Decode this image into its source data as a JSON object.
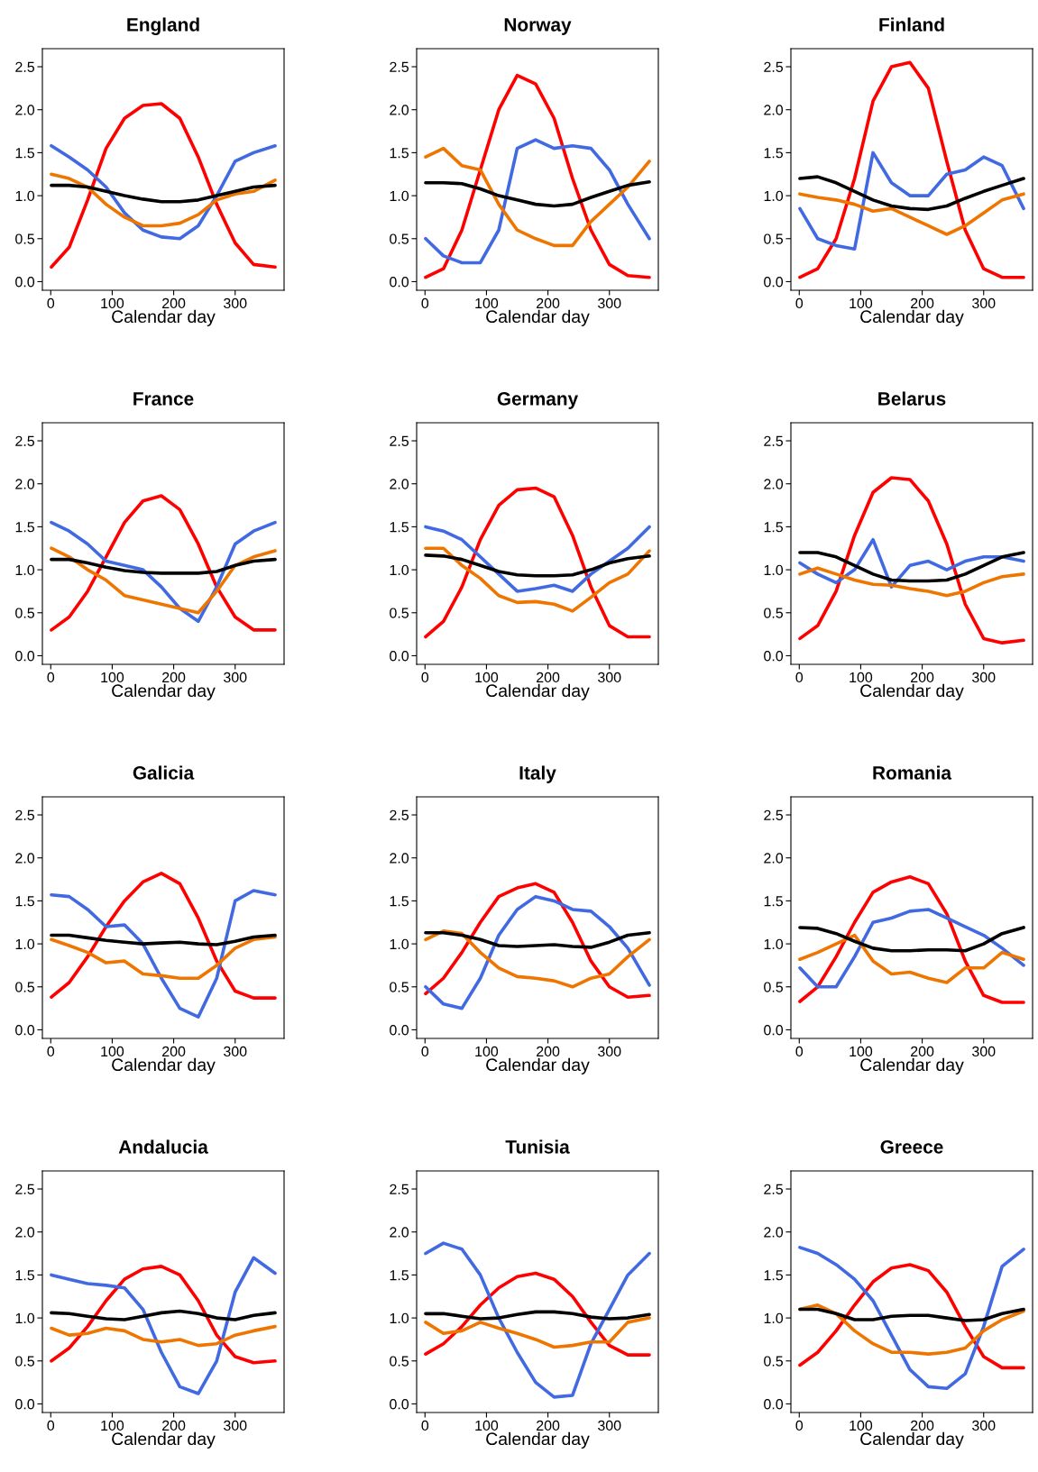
{
  "chart_data": [
    {
      "type": "line",
      "title": "England",
      "xlabel": "Calendar day",
      "x": [
        1,
        30,
        60,
        90,
        120,
        150,
        180,
        210,
        240,
        270,
        300,
        330,
        365
      ],
      "xlim": [
        -13.6,
        379.6
      ],
      "xticks": [
        0,
        100,
        200,
        300
      ],
      "ylim": [
        -0.1,
        2.71
      ],
      "yticks": [
        {
          "value": 0,
          "label": "0.0"
        },
        {
          "value": 0.5,
          "label": "0.5"
        },
        {
          "value": 1,
          "label": "1.0"
        },
        {
          "value": 1.5,
          "label": "1.5"
        },
        {
          "value": 2,
          "label": "2.0"
        },
        {
          "value": 2.5,
          "label": "2.5"
        }
      ],
      "series": [
        {
          "color": "#ff0000",
          "values": [
            0.17,
            0.4,
            0.95,
            1.55,
            1.9,
            2.05,
            2.07,
            1.9,
            1.45,
            0.9,
            0.45,
            0.2,
            0.17
          ]
        },
        {
          "color": "#4169e1",
          "values": [
            1.58,
            1.45,
            1.3,
            1.1,
            0.8,
            0.6,
            0.52,
            0.5,
            0.65,
            1.0,
            1.4,
            1.5,
            1.58
          ]
        },
        {
          "color": "#ee7600",
          "values": [
            1.25,
            1.2,
            1.1,
            0.9,
            0.75,
            0.65,
            0.65,
            0.68,
            0.78,
            0.95,
            1.02,
            1.05,
            1.18
          ]
        },
        {
          "color": "#000000",
          "values": [
            1.12,
            1.12,
            1.1,
            1.05,
            1.0,
            0.96,
            0.93,
            0.93,
            0.95,
            1.0,
            1.05,
            1.1,
            1.12
          ]
        }
      ]
    },
    {
      "type": "line",
      "title": "Norway",
      "xlabel": "Calendar day",
      "x": [
        1,
        30,
        60,
        90,
        120,
        150,
        180,
        210,
        240,
        270,
        300,
        330,
        365
      ],
      "xlim": [
        -13.6,
        379.6
      ],
      "xticks": [
        0,
        100,
        200,
        300
      ],
      "ylim": [
        -0.1,
        2.71
      ],
      "yticks": [
        {
          "value": 0,
          "label": "0.0"
        },
        {
          "value": 0.5,
          "label": "0.5"
        },
        {
          "value": 1,
          "label": "1.0"
        },
        {
          "value": 1.5,
          "label": "1.5"
        },
        {
          "value": 2,
          "label": "2.0"
        },
        {
          "value": 2.5,
          "label": "2.5"
        }
      ],
      "series": [
        {
          "color": "#ff0000",
          "values": [
            0.05,
            0.15,
            0.6,
            1.3,
            2.0,
            2.4,
            2.3,
            1.9,
            1.2,
            0.6,
            0.2,
            0.07,
            0.05
          ]
        },
        {
          "color": "#4169e1",
          "values": [
            0.5,
            0.3,
            0.22,
            0.22,
            0.6,
            1.55,
            1.65,
            1.55,
            1.58,
            1.55,
            1.3,
            0.9,
            0.5
          ]
        },
        {
          "color": "#ee7600",
          "values": [
            1.45,
            1.55,
            1.35,
            1.3,
            0.9,
            0.6,
            0.5,
            0.42,
            0.42,
            0.7,
            0.9,
            1.1,
            1.4
          ]
        },
        {
          "color": "#000000",
          "values": [
            1.15,
            1.15,
            1.14,
            1.08,
            1.0,
            0.95,
            0.9,
            0.88,
            0.9,
            0.98,
            1.05,
            1.12,
            1.16
          ]
        }
      ]
    },
    {
      "type": "line",
      "title": "Finland",
      "xlabel": "Calendar day",
      "x": [
        1,
        30,
        60,
        90,
        120,
        150,
        180,
        210,
        240,
        270,
        300,
        330,
        365
      ],
      "xlim": [
        -13.6,
        379.6
      ],
      "xticks": [
        0,
        100,
        200,
        300
      ],
      "ylim": [
        -0.1,
        2.71
      ],
      "yticks": [
        {
          "value": 0,
          "label": "0.0"
        },
        {
          "value": 0.5,
          "label": "0.5"
        },
        {
          "value": 1,
          "label": "1.0"
        },
        {
          "value": 1.5,
          "label": "1.5"
        },
        {
          "value": 2,
          "label": "2.0"
        },
        {
          "value": 2.5,
          "label": "2.5"
        }
      ],
      "series": [
        {
          "color": "#ff0000",
          "values": [
            0.05,
            0.15,
            0.5,
            1.2,
            2.1,
            2.5,
            2.55,
            2.25,
            1.4,
            0.6,
            0.15,
            0.05,
            0.05
          ]
        },
        {
          "color": "#4169e1",
          "values": [
            0.85,
            0.5,
            0.42,
            0.38,
            1.5,
            1.15,
            1.0,
            1.0,
            1.25,
            1.3,
            1.45,
            1.35,
            0.85
          ]
        },
        {
          "color": "#ee7600",
          "values": [
            1.02,
            0.98,
            0.95,
            0.9,
            0.82,
            0.85,
            0.75,
            0.65,
            0.55,
            0.65,
            0.8,
            0.95,
            1.02
          ]
        },
        {
          "color": "#000000",
          "values": [
            1.2,
            1.22,
            1.15,
            1.05,
            0.95,
            0.88,
            0.85,
            0.84,
            0.88,
            0.97,
            1.05,
            1.12,
            1.2
          ]
        }
      ]
    },
    {
      "type": "line",
      "title": "France",
      "xlabel": "Calendar day",
      "x": [
        1,
        30,
        60,
        90,
        120,
        150,
        180,
        210,
        240,
        270,
        300,
        330,
        365
      ],
      "xlim": [
        -13.6,
        379.6
      ],
      "xticks": [
        0,
        100,
        200,
        300
      ],
      "ylim": [
        -0.1,
        2.71
      ],
      "yticks": [
        {
          "value": 0,
          "label": "0.0"
        },
        {
          "value": 0.5,
          "label": "0.5"
        },
        {
          "value": 1,
          "label": "1.0"
        },
        {
          "value": 1.5,
          "label": "1.5"
        },
        {
          "value": 2,
          "label": "2.0"
        },
        {
          "value": 2.5,
          "label": "2.5"
        }
      ],
      "series": [
        {
          "color": "#ff0000",
          "values": [
            0.3,
            0.45,
            0.75,
            1.15,
            1.55,
            1.8,
            1.86,
            1.7,
            1.3,
            0.8,
            0.45,
            0.3,
            0.3
          ]
        },
        {
          "color": "#4169e1",
          "values": [
            1.55,
            1.45,
            1.3,
            1.1,
            1.05,
            1.0,
            0.8,
            0.55,
            0.4,
            0.8,
            1.3,
            1.45,
            1.55
          ]
        },
        {
          "color": "#ee7600",
          "values": [
            1.25,
            1.15,
            1.0,
            0.88,
            0.7,
            0.65,
            0.6,
            0.55,
            0.5,
            0.75,
            1.05,
            1.15,
            1.22
          ]
        },
        {
          "color": "#000000",
          "values": [
            1.12,
            1.12,
            1.08,
            1.03,
            0.99,
            0.97,
            0.96,
            0.96,
            0.96,
            0.98,
            1.05,
            1.1,
            1.12
          ]
        }
      ]
    },
    {
      "type": "line",
      "title": "Germany",
      "xlabel": "Calendar day",
      "x": [
        1,
        30,
        60,
        90,
        120,
        150,
        180,
        210,
        240,
        270,
        300,
        330,
        365
      ],
      "xlim": [
        -13.6,
        379.6
      ],
      "xticks": [
        0,
        100,
        200,
        300
      ],
      "ylim": [
        -0.1,
        2.71
      ],
      "yticks": [
        {
          "value": 0,
          "label": "0.0"
        },
        {
          "value": 0.5,
          "label": "0.5"
        },
        {
          "value": 1,
          "label": "1.0"
        },
        {
          "value": 1.5,
          "label": "1.5"
        },
        {
          "value": 2,
          "label": "2.0"
        },
        {
          "value": 2.5,
          "label": "2.5"
        }
      ],
      "series": [
        {
          "color": "#ff0000",
          "values": [
            0.22,
            0.4,
            0.8,
            1.35,
            1.75,
            1.93,
            1.95,
            1.85,
            1.4,
            0.8,
            0.35,
            0.22,
            0.22
          ]
        },
        {
          "color": "#4169e1",
          "values": [
            1.5,
            1.45,
            1.35,
            1.15,
            0.95,
            0.75,
            0.78,
            0.82,
            0.75,
            0.95,
            1.1,
            1.25,
            1.5
          ]
        },
        {
          "color": "#ee7600",
          "values": [
            1.25,
            1.25,
            1.05,
            0.9,
            0.7,
            0.62,
            0.63,
            0.6,
            0.52,
            0.68,
            0.85,
            0.95,
            1.22
          ]
        },
        {
          "color": "#000000",
          "values": [
            1.17,
            1.16,
            1.12,
            1.05,
            0.98,
            0.94,
            0.93,
            0.93,
            0.94,
            1.0,
            1.08,
            1.13,
            1.16
          ]
        }
      ]
    },
    {
      "type": "line",
      "title": "Belarus",
      "xlabel": "Calendar day",
      "x": [
        1,
        30,
        60,
        90,
        120,
        150,
        180,
        210,
        240,
        270,
        300,
        330,
        365
      ],
      "xlim": [
        -13.6,
        379.6
      ],
      "xticks": [
        0,
        100,
        200,
        300
      ],
      "ylim": [
        -0.1,
        2.71
      ],
      "yticks": [
        {
          "value": 0,
          "label": "0.0"
        },
        {
          "value": 0.5,
          "label": "0.5"
        },
        {
          "value": 1,
          "label": "1.0"
        },
        {
          "value": 1.5,
          "label": "1.5"
        },
        {
          "value": 2,
          "label": "2.0"
        },
        {
          "value": 2.5,
          "label": "2.5"
        }
      ],
      "series": [
        {
          "color": "#ff0000",
          "values": [
            0.2,
            0.35,
            0.75,
            1.4,
            1.9,
            2.07,
            2.05,
            1.8,
            1.3,
            0.6,
            0.2,
            0.15,
            0.18
          ]
        },
        {
          "color": "#4169e1",
          "values": [
            1.08,
            0.95,
            0.85,
            1.0,
            1.35,
            0.8,
            1.05,
            1.1,
            1.0,
            1.1,
            1.15,
            1.15,
            1.1
          ]
        },
        {
          "color": "#ee7600",
          "values": [
            0.95,
            1.02,
            0.95,
            0.88,
            0.83,
            0.82,
            0.78,
            0.75,
            0.7,
            0.75,
            0.85,
            0.92,
            0.95
          ]
        },
        {
          "color": "#000000",
          "values": [
            1.2,
            1.2,
            1.15,
            1.05,
            0.95,
            0.88,
            0.87,
            0.87,
            0.88,
            0.95,
            1.05,
            1.15,
            1.2
          ]
        }
      ]
    },
    {
      "type": "line",
      "title": "Galicia",
      "xlabel": "Calendar day",
      "x": [
        1,
        30,
        60,
        90,
        120,
        150,
        180,
        210,
        240,
        270,
        300,
        330,
        365
      ],
      "xlim": [
        -13.6,
        379.6
      ],
      "xticks": [
        0,
        100,
        200,
        300
      ],
      "ylim": [
        -0.1,
        2.71
      ],
      "yticks": [
        {
          "value": 0,
          "label": "0.0"
        },
        {
          "value": 0.5,
          "label": "0.5"
        },
        {
          "value": 1,
          "label": "1.0"
        },
        {
          "value": 1.5,
          "label": "1.5"
        },
        {
          "value": 2,
          "label": "2.0"
        },
        {
          "value": 2.5,
          "label": "2.5"
        }
      ],
      "series": [
        {
          "color": "#ff0000",
          "values": [
            0.38,
            0.55,
            0.85,
            1.2,
            1.5,
            1.72,
            1.82,
            1.7,
            1.3,
            0.8,
            0.45,
            0.37,
            0.37
          ]
        },
        {
          "color": "#4169e1",
          "values": [
            1.57,
            1.55,
            1.4,
            1.2,
            1.22,
            1.0,
            0.6,
            0.25,
            0.15,
            0.6,
            1.5,
            1.62,
            1.57
          ]
        },
        {
          "color": "#ee7600",
          "values": [
            1.05,
            0.98,
            0.9,
            0.78,
            0.8,
            0.65,
            0.63,
            0.6,
            0.6,
            0.75,
            0.95,
            1.05,
            1.08
          ]
        },
        {
          "color": "#000000",
          "values": [
            1.1,
            1.1,
            1.07,
            1.04,
            1.02,
            1.0,
            1.01,
            1.02,
            1.0,
            0.99,
            1.03,
            1.08,
            1.1
          ]
        }
      ]
    },
    {
      "type": "line",
      "title": "Italy",
      "xlabel": "Calendar day",
      "x": [
        1,
        30,
        60,
        90,
        120,
        150,
        180,
        210,
        240,
        270,
        300,
        330,
        365
      ],
      "xlim": [
        -13.6,
        379.6
      ],
      "xticks": [
        0,
        100,
        200,
        300
      ],
      "ylim": [
        -0.1,
        2.71
      ],
      "yticks": [
        {
          "value": 0,
          "label": "0.0"
        },
        {
          "value": 0.5,
          "label": "0.5"
        },
        {
          "value": 1,
          "label": "1.0"
        },
        {
          "value": 1.5,
          "label": "1.5"
        },
        {
          "value": 2,
          "label": "2.0"
        },
        {
          "value": 2.5,
          "label": "2.5"
        }
      ],
      "series": [
        {
          "color": "#ff0000",
          "values": [
            0.42,
            0.6,
            0.9,
            1.25,
            1.55,
            1.65,
            1.7,
            1.6,
            1.25,
            0.8,
            0.5,
            0.38,
            0.4
          ]
        },
        {
          "color": "#4169e1",
          "values": [
            0.5,
            0.3,
            0.25,
            0.6,
            1.1,
            1.4,
            1.55,
            1.5,
            1.4,
            1.38,
            1.2,
            0.95,
            0.52
          ]
        },
        {
          "color": "#ee7600",
          "values": [
            1.05,
            1.15,
            1.12,
            0.9,
            0.72,
            0.62,
            0.6,
            0.57,
            0.5,
            0.6,
            0.65,
            0.85,
            1.05
          ]
        },
        {
          "color": "#000000",
          "values": [
            1.13,
            1.13,
            1.1,
            1.05,
            0.98,
            0.97,
            0.98,
            0.99,
            0.97,
            0.96,
            1.02,
            1.1,
            1.13
          ]
        }
      ]
    },
    {
      "type": "line",
      "title": "Romania",
      "xlabel": "Calendar day",
      "x": [
        1,
        30,
        60,
        90,
        120,
        150,
        180,
        210,
        240,
        270,
        300,
        330,
        365
      ],
      "xlim": [
        -13.6,
        379.6
      ],
      "xticks": [
        0,
        100,
        200,
        300
      ],
      "ylim": [
        -0.1,
        2.71
      ],
      "yticks": [
        {
          "value": 0,
          "label": "0.0"
        },
        {
          "value": 0.5,
          "label": "0.5"
        },
        {
          "value": 1,
          "label": "1.0"
        },
        {
          "value": 1.5,
          "label": "1.5"
        },
        {
          "value": 2,
          "label": "2.0"
        },
        {
          "value": 2.5,
          "label": "2.5"
        }
      ],
      "series": [
        {
          "color": "#ff0000",
          "values": [
            0.33,
            0.5,
            0.85,
            1.25,
            1.6,
            1.72,
            1.78,
            1.7,
            1.35,
            0.8,
            0.4,
            0.32,
            0.32
          ]
        },
        {
          "color": "#4169e1",
          "values": [
            0.72,
            0.5,
            0.5,
            0.85,
            1.25,
            1.3,
            1.38,
            1.4,
            1.3,
            1.2,
            1.1,
            0.95,
            0.75
          ]
        },
        {
          "color": "#ee7600",
          "values": [
            0.82,
            0.9,
            1.0,
            1.1,
            0.8,
            0.65,
            0.67,
            0.6,
            0.55,
            0.72,
            0.72,
            0.9,
            0.82
          ]
        },
        {
          "color": "#000000",
          "values": [
            1.19,
            1.18,
            1.12,
            1.03,
            0.95,
            0.92,
            0.92,
            0.93,
            0.93,
            0.92,
            1.0,
            1.12,
            1.19
          ]
        }
      ]
    },
    {
      "type": "line",
      "title": "Andalucia",
      "xlabel": "Calendar day",
      "x": [
        1,
        30,
        60,
        90,
        120,
        150,
        180,
        210,
        240,
        270,
        300,
        330,
        365
      ],
      "xlim": [
        -13.6,
        379.6
      ],
      "xticks": [
        0,
        100,
        200,
        300
      ],
      "ylim": [
        -0.1,
        2.71
      ],
      "yticks": [
        {
          "value": 0,
          "label": "0.0"
        },
        {
          "value": 0.5,
          "label": "0.5"
        },
        {
          "value": 1,
          "label": "1.0"
        },
        {
          "value": 1.5,
          "label": "1.5"
        },
        {
          "value": 2,
          "label": "2.0"
        },
        {
          "value": 2.5,
          "label": "2.5"
        }
      ],
      "series": [
        {
          "color": "#ff0000",
          "values": [
            0.5,
            0.65,
            0.9,
            1.2,
            1.45,
            1.57,
            1.6,
            1.5,
            1.2,
            0.8,
            0.55,
            0.48,
            0.5
          ]
        },
        {
          "color": "#4169e1",
          "values": [
            1.5,
            1.45,
            1.4,
            1.38,
            1.35,
            1.1,
            0.6,
            0.2,
            0.12,
            0.5,
            1.3,
            1.7,
            1.52
          ]
        },
        {
          "color": "#ee7600",
          "values": [
            0.88,
            0.8,
            0.82,
            0.88,
            0.85,
            0.75,
            0.72,
            0.75,
            0.68,
            0.7,
            0.8,
            0.85,
            0.9
          ]
        },
        {
          "color": "#000000",
          "values": [
            1.06,
            1.05,
            1.02,
            0.99,
            0.98,
            1.02,
            1.06,
            1.08,
            1.05,
            1.0,
            0.98,
            1.03,
            1.06
          ]
        }
      ]
    },
    {
      "type": "line",
      "title": "Tunisia",
      "xlabel": "Calendar day",
      "x": [
        1,
        30,
        60,
        90,
        120,
        150,
        180,
        210,
        240,
        270,
        300,
        330,
        365
      ],
      "xlim": [
        -13.6,
        379.6
      ],
      "xticks": [
        0,
        100,
        200,
        300
      ],
      "ylim": [
        -0.1,
        2.71
      ],
      "yticks": [
        {
          "value": 0,
          "label": "0.0"
        },
        {
          "value": 0.5,
          "label": "0.5"
        },
        {
          "value": 1,
          "label": "1.0"
        },
        {
          "value": 1.5,
          "label": "1.5"
        },
        {
          "value": 2,
          "label": "2.0"
        },
        {
          "value": 2.5,
          "label": "2.5"
        }
      ],
      "series": [
        {
          "color": "#ff0000",
          "values": [
            0.58,
            0.7,
            0.9,
            1.15,
            1.35,
            1.48,
            1.52,
            1.45,
            1.25,
            0.95,
            0.68,
            0.57,
            0.57
          ]
        },
        {
          "color": "#4169e1",
          "values": [
            1.75,
            1.87,
            1.8,
            1.5,
            1.0,
            0.6,
            0.25,
            0.08,
            0.1,
            0.7,
            1.1,
            1.5,
            1.75
          ]
        },
        {
          "color": "#ee7600",
          "values": [
            0.95,
            0.82,
            0.85,
            0.95,
            0.88,
            0.82,
            0.75,
            0.66,
            0.68,
            0.72,
            0.72,
            0.95,
            1.0
          ]
        },
        {
          "color": "#000000",
          "values": [
            1.05,
            1.05,
            1.02,
            0.99,
            1.0,
            1.04,
            1.07,
            1.07,
            1.05,
            1.01,
            0.99,
            1.0,
            1.04
          ]
        }
      ]
    },
    {
      "type": "line",
      "title": "Greece",
      "xlabel": "Calendar day",
      "x": [
        1,
        30,
        60,
        90,
        120,
        150,
        180,
        210,
        240,
        270,
        300,
        330,
        365
      ],
      "xlim": [
        -13.6,
        379.6
      ],
      "xticks": [
        0,
        100,
        200,
        300
      ],
      "ylim": [
        -0.1,
        2.71
      ],
      "yticks": [
        {
          "value": 0,
          "label": "0.0"
        },
        {
          "value": 0.5,
          "label": "0.5"
        },
        {
          "value": 1,
          "label": "1.0"
        },
        {
          "value": 1.5,
          "label": "1.5"
        },
        {
          "value": 2,
          "label": "2.0"
        },
        {
          "value": 2.5,
          "label": "2.5"
        }
      ],
      "series": [
        {
          "color": "#ff0000",
          "values": [
            0.45,
            0.6,
            0.85,
            1.15,
            1.42,
            1.58,
            1.62,
            1.55,
            1.3,
            0.9,
            0.55,
            0.42,
            0.42
          ]
        },
        {
          "color": "#4169e1",
          "values": [
            1.82,
            1.75,
            1.62,
            1.45,
            1.2,
            0.8,
            0.4,
            0.2,
            0.18,
            0.35,
            0.9,
            1.6,
            1.8
          ]
        },
        {
          "color": "#ee7600",
          "values": [
            1.1,
            1.15,
            1.05,
            0.85,
            0.7,
            0.6,
            0.6,
            0.58,
            0.6,
            0.65,
            0.85,
            0.98,
            1.08
          ]
        },
        {
          "color": "#000000",
          "values": [
            1.1,
            1.1,
            1.05,
            0.98,
            0.98,
            1.02,
            1.03,
            1.03,
            1.0,
            0.97,
            0.98,
            1.05,
            1.1
          ]
        }
      ]
    }
  ]
}
